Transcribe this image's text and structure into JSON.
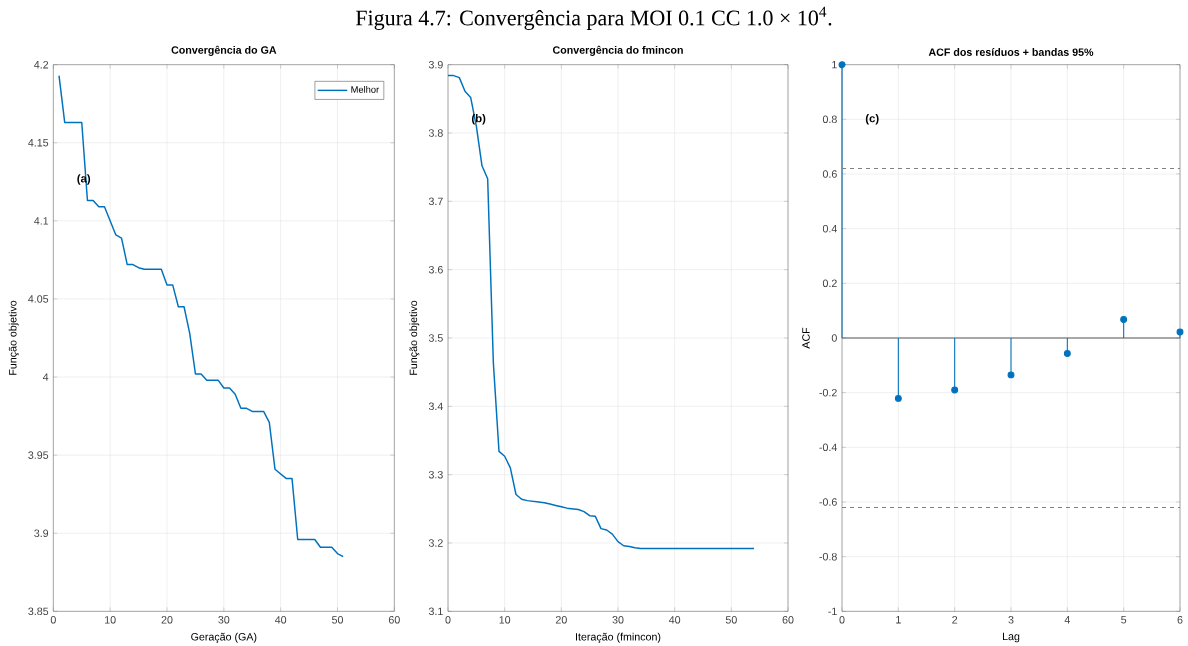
{
  "chart_data": [
    {
      "type": "line",
      "title": "Convergência do GA",
      "xlabel": "Geração (GA)",
      "ylabel": "Função objetivo",
      "x": [
        1,
        2,
        3,
        4,
        5,
        6,
        7,
        8,
        9,
        10,
        11,
        12,
        13,
        14,
        15,
        16,
        17,
        18,
        19,
        20,
        21,
        22,
        23,
        24,
        25,
        26,
        27,
        28,
        29,
        30,
        31,
        32,
        33,
        34,
        35,
        36,
        37,
        38,
        39,
        40,
        41,
        42,
        43,
        44,
        45,
        46,
        47,
        48,
        49,
        50,
        51
      ],
      "series": [
        {
          "name": "Melhor",
          "color": "#0072bd",
          "values": [
            4.193,
            4.163,
            4.163,
            4.163,
            4.163,
            4.113,
            4.113,
            4.109,
            4.109,
            4.1,
            4.091,
            4.089,
            4.072,
            4.072,
            4.07,
            4.069,
            4.069,
            4.069,
            4.069,
            4.059,
            4.059,
            4.045,
            4.045,
            4.028,
            4.002,
            4.002,
            3.998,
            3.998,
            3.998,
            3.993,
            3.993,
            3.989,
            3.98,
            3.98,
            3.978,
            3.978,
            3.978,
            3.971,
            3.941,
            3.938,
            3.935,
            3.935,
            3.896,
            3.896,
            3.896,
            3.896,
            3.891,
            3.891,
            3.891,
            3.887,
            3.885
          ]
        }
      ],
      "xlim": [
        0,
        60
      ],
      "ylim": [
        3.85,
        4.2
      ],
      "xticks": [
        0,
        10,
        20,
        30,
        40,
        50,
        60
      ],
      "yticks": [
        3.85,
        3.9,
        3.95,
        4,
        4.05,
        4.1,
        4.15,
        4.2
      ],
      "grid": true,
      "legend": "top right",
      "annotations": [
        "Figura 4.7: Convergência para MOI 0.1 CC 1.0 × 10$^{4}$.",
        "(a)"
      ]
    },
    {
      "type": "line",
      "title": "Convergência do fmincon",
      "xlabel": "Iteração (fmincon)",
      "ylabel": "Função objetivo",
      "x": [
        0,
        1,
        2,
        3,
        4,
        5,
        6,
        7,
        8,
        9,
        10,
        11,
        12,
        13,
        14,
        15,
        16,
        17,
        18,
        19,
        20,
        21,
        22,
        23,
        24,
        25,
        26,
        27,
        28,
        29,
        30,
        31,
        32,
        33,
        34,
        35,
        36,
        37,
        38,
        39,
        40,
        41,
        42,
        43,
        44,
        45,
        46,
        47,
        48,
        49,
        50,
        51,
        52,
        53,
        54
      ],
      "series": [
        {
          "color": "#0072bd",
          "values": [
            3.884,
            3.884,
            3.881,
            3.861,
            3.852,
            3.81,
            3.752,
            3.733,
            3.464,
            3.334,
            3.327,
            3.31,
            3.271,
            3.264,
            3.262,
            3.261,
            3.26,
            3.259,
            3.257,
            3.255,
            3.253,
            3.251,
            3.25,
            3.249,
            3.246,
            3.24,
            3.239,
            3.221,
            3.219,
            3.213,
            3.202,
            3.196,
            3.195,
            3.193,
            3.192,
            3.192,
            3.192,
            3.192,
            3.192,
            3.192,
            3.192,
            3.192,
            3.192,
            3.192,
            3.192,
            3.192,
            3.192,
            3.192,
            3.192,
            3.192,
            3.192,
            3.192,
            3.192,
            3.192,
            3.192
          ]
        }
      ],
      "xlim": [
        0,
        60
      ],
      "ylim": [
        3.1,
        3.9
      ],
      "xticks": [
        0,
        10,
        20,
        30,
        40,
        50,
        60
      ],
      "yticks": [
        3.1,
        3.2,
        3.3,
        3.4,
        3.5,
        3.6,
        3.7,
        3.8,
        3.9
      ],
      "grid": true,
      "annotations": [
        "(b)"
      ]
    },
    {
      "type": "lollipop",
      "title": "ACF dos resíduos + bandas 95%",
      "xlabel": "Lag",
      "ylabel": "ACF",
      "x": [
        0,
        1,
        2,
        3,
        4,
        5,
        6
      ],
      "values": [
        1,
        -0.221,
        -0.19,
        -0.135,
        -0.057,
        0.068,
        0.022
      ],
      "color": "#0072bd",
      "marker": "circle",
      "xlim": [
        0,
        6
      ],
      "ylim": [
        -1,
        1
      ],
      "xticks": [
        0,
        1,
        2,
        3,
        4,
        5,
        6
      ],
      "yticks": [
        -1,
        -0.8,
        -0.6,
        -0.4,
        -0.2,
        0,
        0.2,
        0.4,
        0.6,
        0.8,
        1
      ],
      "grid": true,
      "ref_lines": [
        {
          "axis": "y",
          "value": 0.62,
          "color": "#808080",
          "line_style": "dashed"
        },
        {
          "axis": "y",
          "value": -0.62,
          "color": "#808080",
          "line_style": "dashed"
        }
      ],
      "annotations": [
        "(c)"
      ]
    }
  ]
}
